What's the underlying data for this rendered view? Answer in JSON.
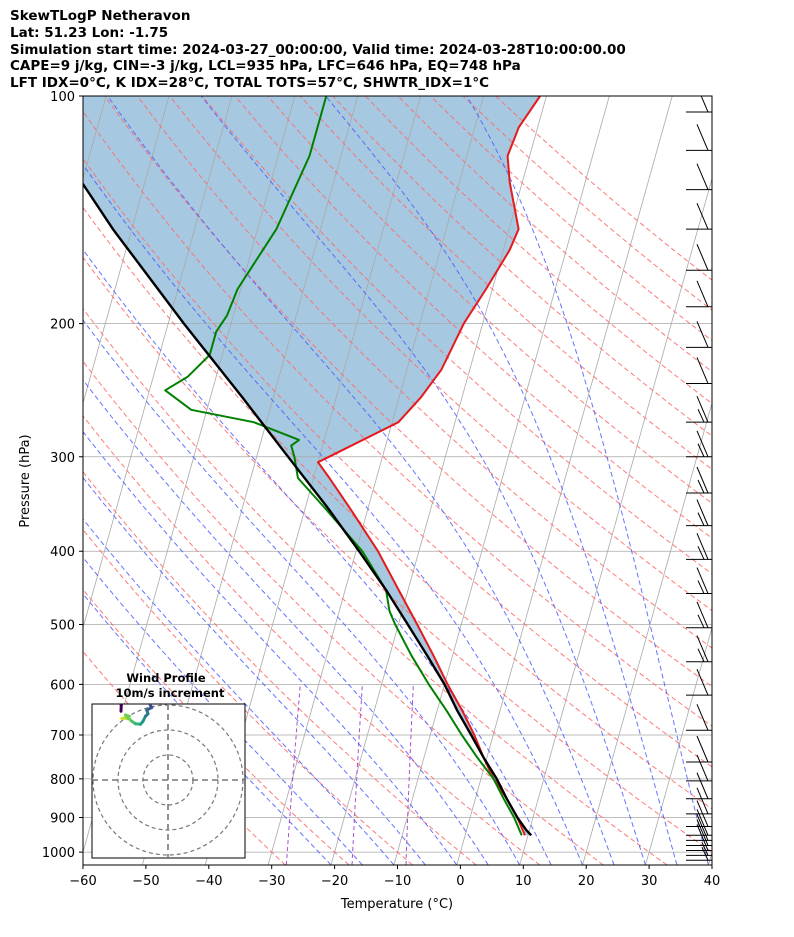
{
  "header": {
    "line1": "SkewTLogP Netheravon",
    "line2": "Lat: 51.23   Lon: -1.75",
    "line3": "Simulation start time: 2024-03-27_00:00:00, Valid time: 2024-03-28T10:00:00.00",
    "line4": "CAPE=9 j/kg, CIN=-3 j/kg, LCL=935 hPa, LFC=646 hPa, EQ=748 hPa",
    "line5": "LFT IDX=0°C, K IDX=28°C, TOTAL TOTS=57°C, SHWTR_IDX=1°C"
  },
  "colors": {
    "temperature": "#e41a1c",
    "dewpoint": "#008000",
    "parcel": "#000000",
    "cape_fill": "#a6c8e0",
    "dry_adiabat": "#ff6b6b",
    "moist_adiabat": "#4a5cff",
    "mixing_ratio": "#9b30c8",
    "isotherm": "#a9a9a9"
  },
  "chart_data": [
    {
      "type": "line",
      "subtype": "skew-t log-p",
      "xlabel": "Temperature (°C)",
      "ylabel": "Pressure (hPa)",
      "xlim": [
        -60,
        40
      ],
      "ylim": [
        1040,
        100
      ],
      "y_scale": "log",
      "grid": true,
      "x_ticks": [
        "−60",
        "−50",
        "−40",
        "−30",
        "−20",
        "−10",
        "0",
        "10",
        "20",
        "30",
        "40"
      ],
      "y_ticks": [
        "100",
        "200",
        "300",
        "400",
        "500",
        "600",
        "700",
        "800",
        "900",
        "1000"
      ],
      "series": [
        {
          "name": "Temperature",
          "points": [
            {
              "p": 950,
              "t": 9.5
            },
            {
              "p": 900,
              "t": 7.5
            },
            {
              "p": 850,
              "t": 5.0
            },
            {
              "p": 800,
              "t": 2.0
            },
            {
              "p": 750,
              "t": -0.5
            },
            {
              "p": 700,
              "t": -3.0
            },
            {
              "p": 650,
              "t": -6.0
            },
            {
              "p": 600,
              "t": -9.5
            },
            {
              "p": 550,
              "t": -13.0
            },
            {
              "p": 500,
              "t": -17.0
            },
            {
              "p": 450,
              "t": -21.5
            },
            {
              "p": 400,
              "t": -26.5
            },
            {
              "p": 350,
              "t": -33.0
            },
            {
              "p": 320,
              "t": -37.5
            },
            {
              "p": 305,
              "t": -40.0
            },
            {
              "p": 300,
              "t": -38.5
            },
            {
              "p": 270,
              "t": -29.0
            },
            {
              "p": 250,
              "t": -26.5
            },
            {
              "p": 230,
              "t": -24.5
            },
            {
              "p": 200,
              "t": -23.0
            },
            {
              "p": 180,
              "t": -21.0
            },
            {
              "p": 160,
              "t": -19.0
            },
            {
              "p": 150,
              "t": -18.5
            },
            {
              "p": 130,
              "t": -22.0
            },
            {
              "p": 120,
              "t": -23.5
            },
            {
              "p": 110,
              "t": -23.0
            },
            {
              "p": 100,
              "t": -21.0
            }
          ]
        },
        {
          "name": "Dewpoint",
          "points": [
            {
              "p": 950,
              "t": 9.0
            },
            {
              "p": 900,
              "t": 7.0
            },
            {
              "p": 850,
              "t": 4.5
            },
            {
              "p": 800,
              "t": 2.0
            },
            {
              "p": 750,
              "t": -1.5
            },
            {
              "p": 700,
              "t": -5.0
            },
            {
              "p": 650,
              "t": -8.5
            },
            {
              "p": 600,
              "t": -12.5
            },
            {
              "p": 550,
              "t": -16.5
            },
            {
              "p": 500,
              "t": -20.5
            },
            {
              "p": 480,
              "t": -22.0
            },
            {
              "p": 450,
              "t": -23.5
            },
            {
              "p": 400,
              "t": -29.0
            },
            {
              "p": 350,
              "t": -37.0
            },
            {
              "p": 320,
              "t": -42.5
            },
            {
              "p": 300,
              "t": -44.0
            },
            {
              "p": 290,
              "t": -45.0
            },
            {
              "p": 285,
              "t": -44.0
            },
            {
              "p": 270,
              "t": -52.0
            },
            {
              "p": 260,
              "t": -62.5
            },
            {
              "p": 245,
              "t": -67.5
            },
            {
              "p": 235,
              "t": -64.5
            },
            {
              "p": 220,
              "t": -62.0
            },
            {
              "p": 205,
              "t": -62.0
            },
            {
              "p": 195,
              "t": -61.0
            },
            {
              "p": 180,
              "t": -60.5
            },
            {
              "p": 150,
              "t": -57.0
            },
            {
              "p": 120,
              "t": -55.0
            },
            {
              "p": 100,
              "t": -55.0
            }
          ]
        },
        {
          "name": "Parcel",
          "points": [
            {
              "p": 950,
              "t": 10.5
            },
            {
              "p": 935,
              "t": 9.5
            },
            {
              "p": 900,
              "t": 7.5
            },
            {
              "p": 850,
              "t": 5.0
            },
            {
              "p": 800,
              "t": 2.5
            },
            {
              "p": 750,
              "t": -0.5
            },
            {
              "p": 700,
              "t": -3.5
            },
            {
              "p": 650,
              "t": -6.8
            },
            {
              "p": 600,
              "t": -10.0
            },
            {
              "p": 550,
              "t": -14.0
            },
            {
              "p": 500,
              "t": -18.5
            },
            {
              "p": 450,
              "t": -23.5
            },
            {
              "p": 400,
              "t": -29.5
            },
            {
              "p": 350,
              "t": -36.5
            },
            {
              "p": 300,
              "t": -45.0
            },
            {
              "p": 250,
              "t": -55.0
            },
            {
              "p": 200,
              "t": -67.5
            },
            {
              "p": 150,
              "t": -83.0
            },
            {
              "p": 100,
              "t": -103.0
            }
          ]
        }
      ],
      "wind_barbs": {
        "color": "#000000",
        "levels": [
          {
            "p": 1025,
            "dir": 250,
            "spd": 8
          },
          {
            "p": 1010,
            "dir": 252,
            "spd": 9
          },
          {
            "p": 995,
            "dir": 255,
            "spd": 10
          },
          {
            "p": 980,
            "dir": 258,
            "spd": 11
          },
          {
            "p": 965,
            "dir": 260,
            "spd": 12
          },
          {
            "p": 950,
            "dir": 262,
            "spd": 12
          },
          {
            "p": 925,
            "dir": 264,
            "spd": 11
          },
          {
            "p": 890,
            "dir": 266,
            "spd": 11
          },
          {
            "p": 850,
            "dir": 266,
            "spd": 12
          },
          {
            "p": 805,
            "dir": 268,
            "spd": 13
          },
          {
            "p": 760,
            "dir": 268,
            "spd": 13
          },
          {
            "p": 690,
            "dir": 270,
            "spd": 13
          },
          {
            "p": 620,
            "dir": 270,
            "spd": 14
          },
          {
            "p": 560,
            "dir": 270,
            "spd": 15
          },
          {
            "p": 505,
            "dir": 268,
            "spd": 16
          },
          {
            "p": 455,
            "dir": 268,
            "spd": 16
          },
          {
            "p": 410,
            "dir": 266,
            "spd": 16
          },
          {
            "p": 370,
            "dir": 265,
            "spd": 16
          },
          {
            "p": 335,
            "dir": 264,
            "spd": 16
          },
          {
            "p": 300,
            "dir": 270,
            "spd": 15
          },
          {
            "p": 270,
            "dir": 270,
            "spd": 15
          },
          {
            "p": 240,
            "dir": 272,
            "spd": 14
          },
          {
            "p": 215,
            "dir": 274,
            "spd": 14
          },
          {
            "p": 190,
            "dir": 275,
            "spd": 13
          },
          {
            "p": 170,
            "dir": 275,
            "spd": 13
          },
          {
            "p": 150,
            "dir": 276,
            "spd": 12
          },
          {
            "p": 133,
            "dir": 276,
            "spd": 12
          },
          {
            "p": 118,
            "dir": 277,
            "spd": 11
          },
          {
            "p": 105,
            "dir": 277,
            "spd": 11
          }
        ]
      }
    },
    {
      "type": "line",
      "subtype": "hodograph",
      "title": "Wind Profile",
      "subtitle": "10m/s increment",
      "ring_step": 10,
      "rings": 3,
      "points": [
        {
          "u": -18.5,
          "v": 24.6,
          "c": "#d8e21f"
        },
        {
          "u": -17.4,
          "v": 24.8,
          "c": "#b4dd2c"
        },
        {
          "u": -16.0,
          "v": 24.5,
          "c": "#8fd744"
        },
        {
          "u": -15.5,
          "v": 25.5,
          "c": "#6ccd5a"
        },
        {
          "u": -17.0,
          "v": 26.0,
          "c": "#6ccd5a"
        },
        {
          "u": -14.5,
          "v": 23.5,
          "c": "#4ac16d"
        },
        {
          "u": -13.0,
          "v": 22.5,
          "c": "#2fb47c"
        },
        {
          "u": -11.0,
          "v": 22.3,
          "c": "#1fa188"
        },
        {
          "u": -10.0,
          "v": 23.5,
          "c": "#21918c"
        },
        {
          "u": -9.0,
          "v": 25.5,
          "c": "#2a788e"
        },
        {
          "u": -8.0,
          "v": 26.5,
          "c": "#2a788e"
        },
        {
          "u": -8.5,
          "v": 28.0,
          "c": "#33638d"
        },
        {
          "u": -6.5,
          "v": 29.0,
          "c": "#3e4c8a"
        },
        {
          "u": -8.0,
          "v": 31.5,
          "c": "#46307e"
        },
        {
          "u": -6.5,
          "v": 34.0,
          "c": "#482173"
        },
        {
          "u": -7.0,
          "v": 37.0,
          "c": "#471365"
        },
        {
          "u": -10.0,
          "v": 39.0,
          "c": "#440154"
        },
        {
          "u": -15.0,
          "v": 38.5,
          "c": "#440154"
        },
        {
          "u": -17.5,
          "v": 36.0,
          "c": "#440154"
        },
        {
          "u": -18.5,
          "v": 32.0,
          "c": "#440154"
        },
        {
          "u": -18.7,
          "v": 30.0,
          "c": "#440154"
        },
        {
          "u": -18.8,
          "v": 27.5,
          "c": "#440154"
        }
      ]
    }
  ]
}
